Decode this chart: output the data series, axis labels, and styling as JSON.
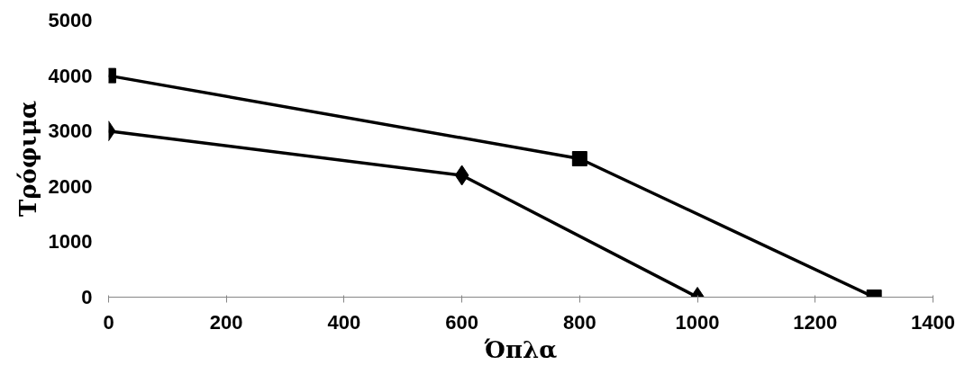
{
  "chart_data": {
    "type": "line",
    "xlabel": "Όπλα",
    "ylabel": "Τρόφιμα",
    "xlim": [
      0,
      1400
    ],
    "xticks": [
      0,
      200,
      400,
      600,
      800,
      1000,
      1200,
      1400
    ],
    "ylim": [
      0,
      5000
    ],
    "yticks": [
      0,
      1000,
      2000,
      3000,
      4000,
      5000
    ],
    "grid": false,
    "line_style": "solid",
    "series": [
      {
        "color": "#000000",
        "marker": "square",
        "x": [
          0,
          800,
          1300
        ],
        "values": [
          4000,
          2500,
          0
        ]
      },
      {
        "color": "#000000",
        "marker": "diamond",
        "x": [
          0,
          600,
          1000
        ],
        "values": [
          3000,
          2200,
          0
        ]
      }
    ]
  }
}
